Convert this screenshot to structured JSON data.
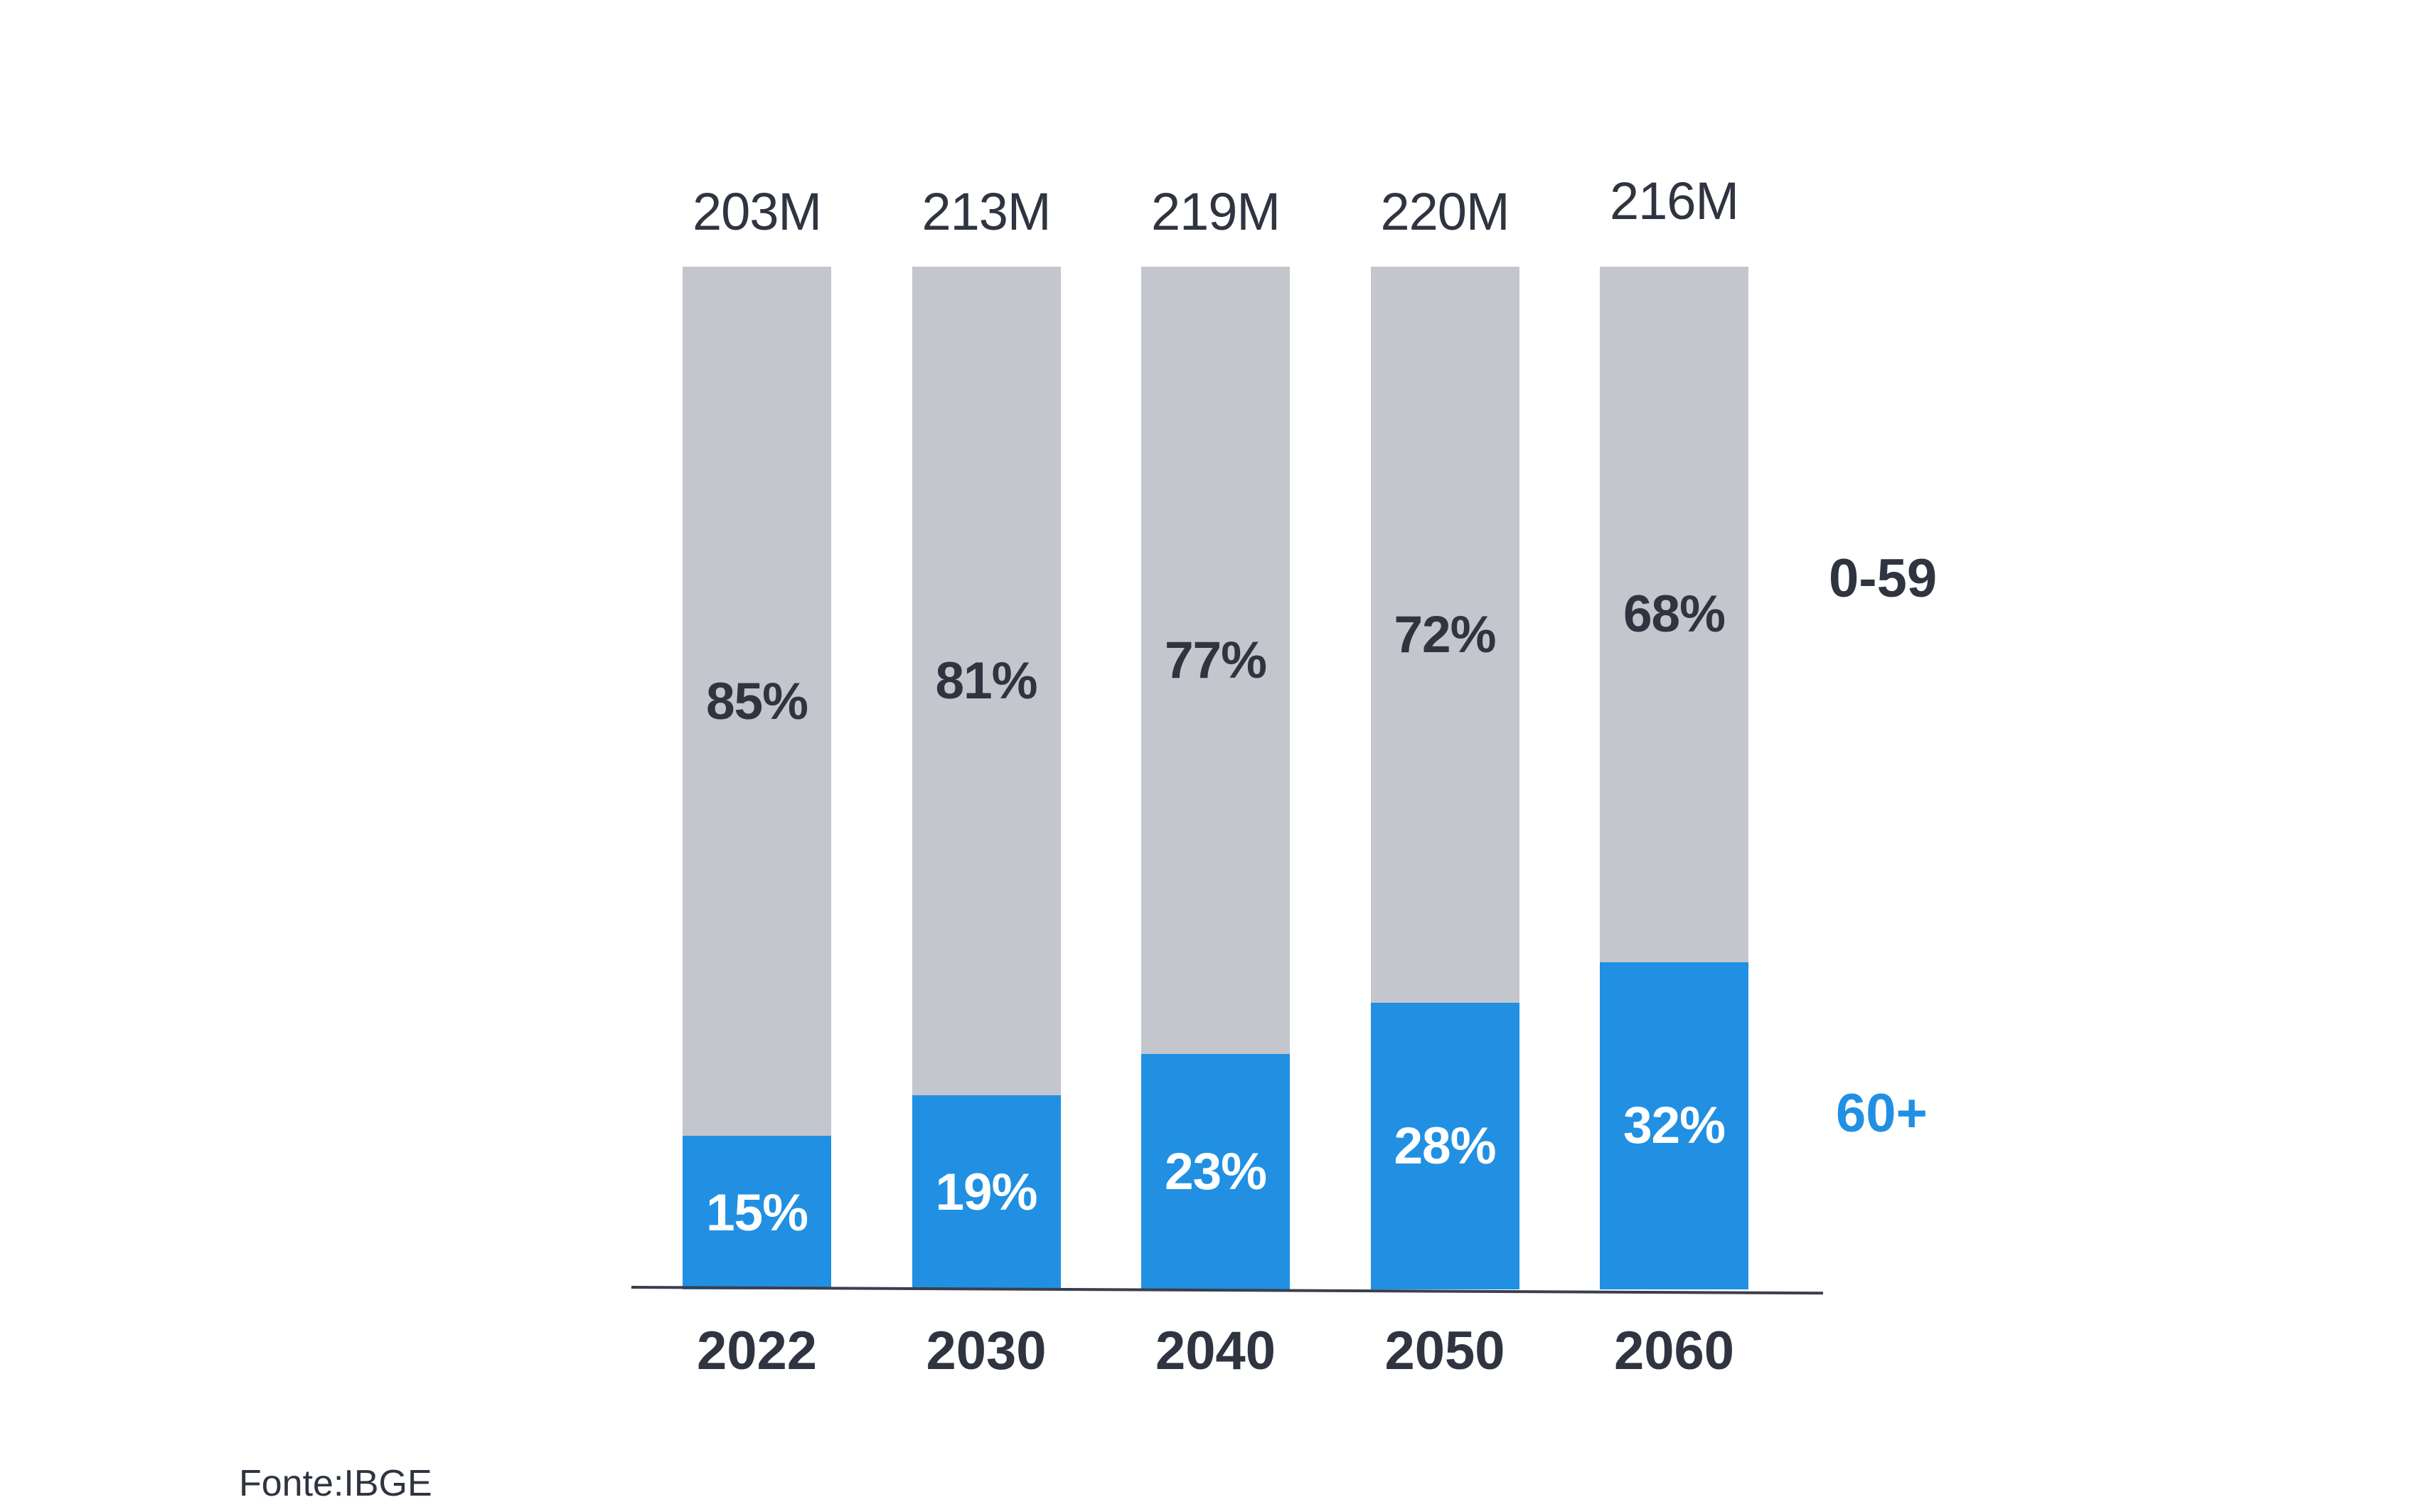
{
  "chart_data": {
    "type": "bar",
    "variant": "100-percent-stacked-column",
    "title": "",
    "categories": [
      "2022",
      "2030",
      "2040",
      "2050",
      "2060"
    ],
    "totals": [
      "203M",
      "213M",
      "219M",
      "220M",
      "216M"
    ],
    "series": [
      {
        "name": "0-59",
        "values": [
          85,
          81,
          77,
          72,
          68
        ],
        "color": "#C4C6CD",
        "label_color": "#2F3440"
      },
      {
        "name": "60+",
        "values": [
          15,
          19,
          23,
          28,
          32
        ],
        "color": "#2190E3",
        "label_color": "#FFFFFF"
      }
    ],
    "value_suffix": "%",
    "xlabel": "",
    "ylabel": "",
    "ylim": [
      0,
      100
    ],
    "grid": false,
    "legend_position": "right",
    "source": "Fonte:IBGE"
  },
  "colors": {
    "background": "#FFFFFF",
    "dark": "#2F3440",
    "axis": "#3A3F4B",
    "blue": "#2190E3",
    "gray": "#C4C6CD"
  }
}
